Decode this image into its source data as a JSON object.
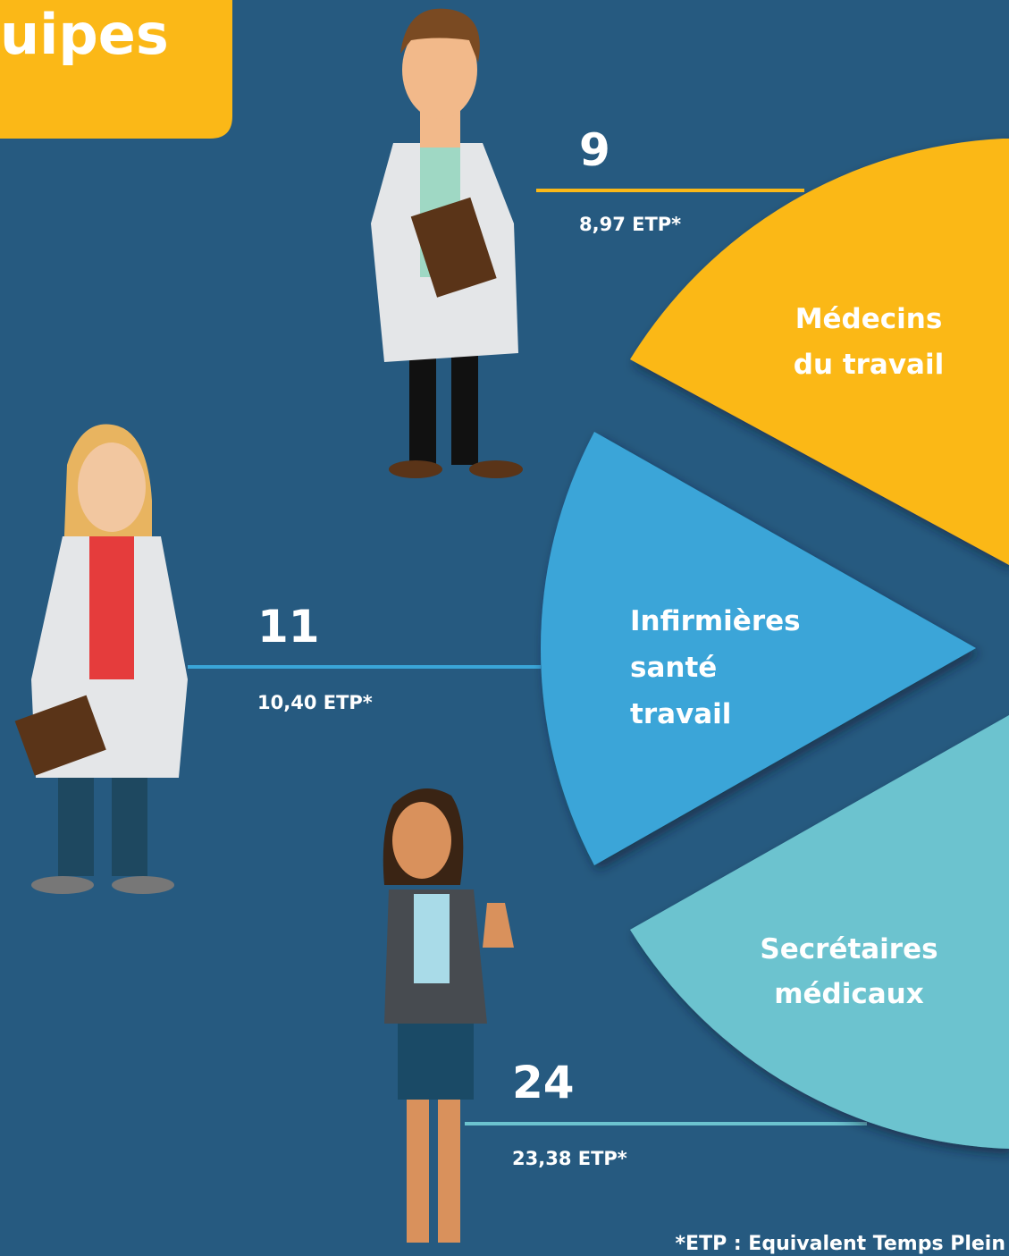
{
  "header": {
    "title": "uipes"
  },
  "groups": [
    {
      "count": "9",
      "etp": "8,97 ETP*",
      "label": [
        "Médecins",
        "du travail"
      ]
    },
    {
      "count": "11",
      "etp": "10,40 ETP*",
      "label": [
        "Infirmières",
        "santé",
        "travail"
      ]
    },
    {
      "count": "24",
      "etp": "23,38 ETP*",
      "label": [
        "Secrétaires",
        "médicaux"
      ]
    }
  ],
  "footnote": "*ETP : Equivalent Temps Plein"
}
